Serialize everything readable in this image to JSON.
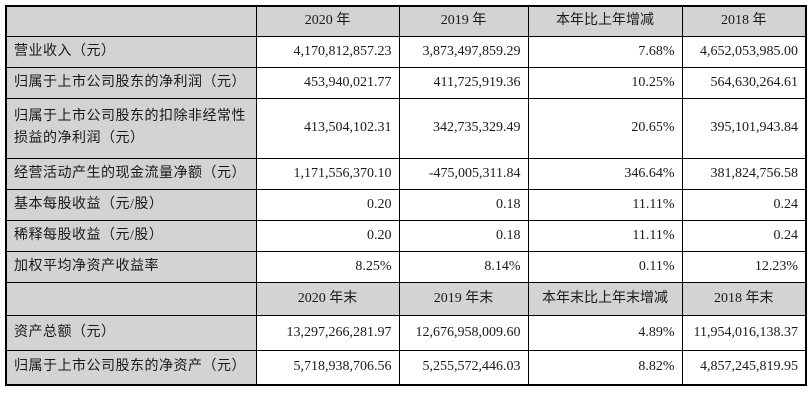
{
  "table": {
    "colors": {
      "header_bg": "#d3d3d3",
      "label_bg": "#d3d3d3",
      "cell_bg": "#ffffff",
      "border": "#000000",
      "text": "#1a1a1a"
    },
    "header_annual": {
      "corner": "",
      "cols": [
        "2020 年",
        "2019 年",
        "本年比上年增减",
        "2018 年"
      ]
    },
    "rows_annual": [
      {
        "label": "营业收入（元）",
        "values": [
          "4,170,812,857.23",
          "3,873,497,859.29",
          "7.68%",
          "4,652,053,985.00"
        ]
      },
      {
        "label": "归属于上市公司股东的净利润（元）",
        "values": [
          "453,940,021.77",
          "411,725,919.36",
          "10.25%",
          "564,630,264.61"
        ]
      },
      {
        "label": "归属于上市公司股东的扣除非经常性损益的净利润（元）",
        "values": [
          "413,504,102.31",
          "342,735,329.49",
          "20.65%",
          "395,101,943.84"
        ]
      },
      {
        "label": "经营活动产生的现金流量净额（元）",
        "values": [
          "1,171,556,370.10",
          "-475,005,311.84",
          "346.64%",
          "381,824,756.58"
        ]
      },
      {
        "label": "基本每股收益（元/股）",
        "values": [
          "0.20",
          "0.18",
          "11.11%",
          "0.24"
        ]
      },
      {
        "label": "稀释每股收益（元/股）",
        "values": [
          "0.20",
          "0.18",
          "11.11%",
          "0.24"
        ]
      },
      {
        "label": "加权平均净资产收益率",
        "values": [
          "8.25%",
          "8.14%",
          "0.11%",
          "12.23%"
        ]
      }
    ],
    "header_yearend": {
      "corner": "",
      "cols": [
        "2020 年末",
        "2019 年末",
        "本年末比上年末增减",
        "2018 年末"
      ]
    },
    "rows_yearend": [
      {
        "label": "资产总额（元）",
        "values": [
          "13,297,266,281.97",
          "12,676,958,009.60",
          "4.89%",
          "11,954,016,138.37"
        ]
      },
      {
        "label": "归属于上市公司股东的净资产（元）",
        "values": [
          "5,718,938,706.56",
          "5,255,572,446.03",
          "8.82%",
          "4,857,245,819.95"
        ]
      }
    ]
  }
}
